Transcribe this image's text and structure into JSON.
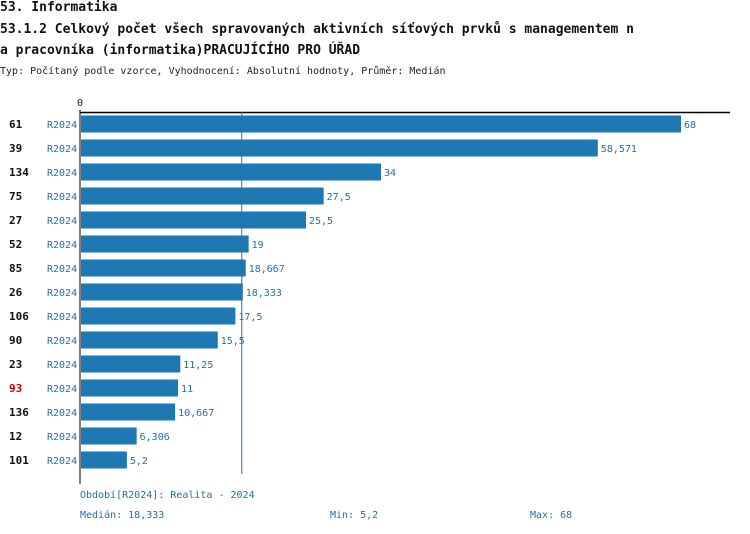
{
  "header": {
    "section": "53. Informatika",
    "title_line1": "53.1.2 Celkový počet všech spravovaných aktivních síťových prvků s managementem n",
    "title_line2": "a pracovníka (informatika)PRACUJÍCÍHO PRO ÚŘAD",
    "subtitle": "Typ: Počítaný podle vzorce, Vyhodnocení: Absolutní hodnoty, Průměr: Medián"
  },
  "colors": {
    "bar": "#1f77b4",
    "label_blue": "#1f6fb0",
    "highlight": "#cc0000",
    "axis": "#000000",
    "median_line": "#2a6ea3"
  },
  "chart_data": {
    "type": "bar",
    "orientation": "horizontal",
    "axis_zero_label": "0",
    "xlim": [
      0,
      68
    ],
    "median": 18.333,
    "highlight_id": "93",
    "rows": [
      {
        "id": "61",
        "period": "R2024",
        "value": 68,
        "label": "68"
      },
      {
        "id": "39",
        "period": "R2024",
        "value": 58.571,
        "label": "58,571"
      },
      {
        "id": "134",
        "period": "R2024",
        "value": 34,
        "label": "34"
      },
      {
        "id": "75",
        "period": "R2024",
        "value": 27.5,
        "label": "27,5"
      },
      {
        "id": "27",
        "period": "R2024",
        "value": 25.5,
        "label": "25,5"
      },
      {
        "id": "52",
        "period": "R2024",
        "value": 19,
        "label": "19"
      },
      {
        "id": "85",
        "period": "R2024",
        "value": 18.667,
        "label": "18,667"
      },
      {
        "id": "26",
        "period": "R2024",
        "value": 18.333,
        "label": "18,333"
      },
      {
        "id": "106",
        "period": "R2024",
        "value": 17.5,
        "label": "17,5"
      },
      {
        "id": "90",
        "period": "R2024",
        "value": 15.5,
        "label": "15,5"
      },
      {
        "id": "23",
        "period": "R2024",
        "value": 11.25,
        "label": "11,25"
      },
      {
        "id": "93",
        "period": "R2024",
        "value": 11,
        "label": "11"
      },
      {
        "id": "136",
        "period": "R2024",
        "value": 10.667,
        "label": "10,667"
      },
      {
        "id": "12",
        "period": "R2024",
        "value": 6.306,
        "label": "6,306"
      },
      {
        "id": "101",
        "period": "R2024",
        "value": 5.2,
        "label": "5,2"
      }
    ]
  },
  "footer": {
    "period": "Období[R2024]: Realita - 2024",
    "median": "Medián: 18,333",
    "min": "Min: 5,2",
    "max": "Max: 68"
  }
}
